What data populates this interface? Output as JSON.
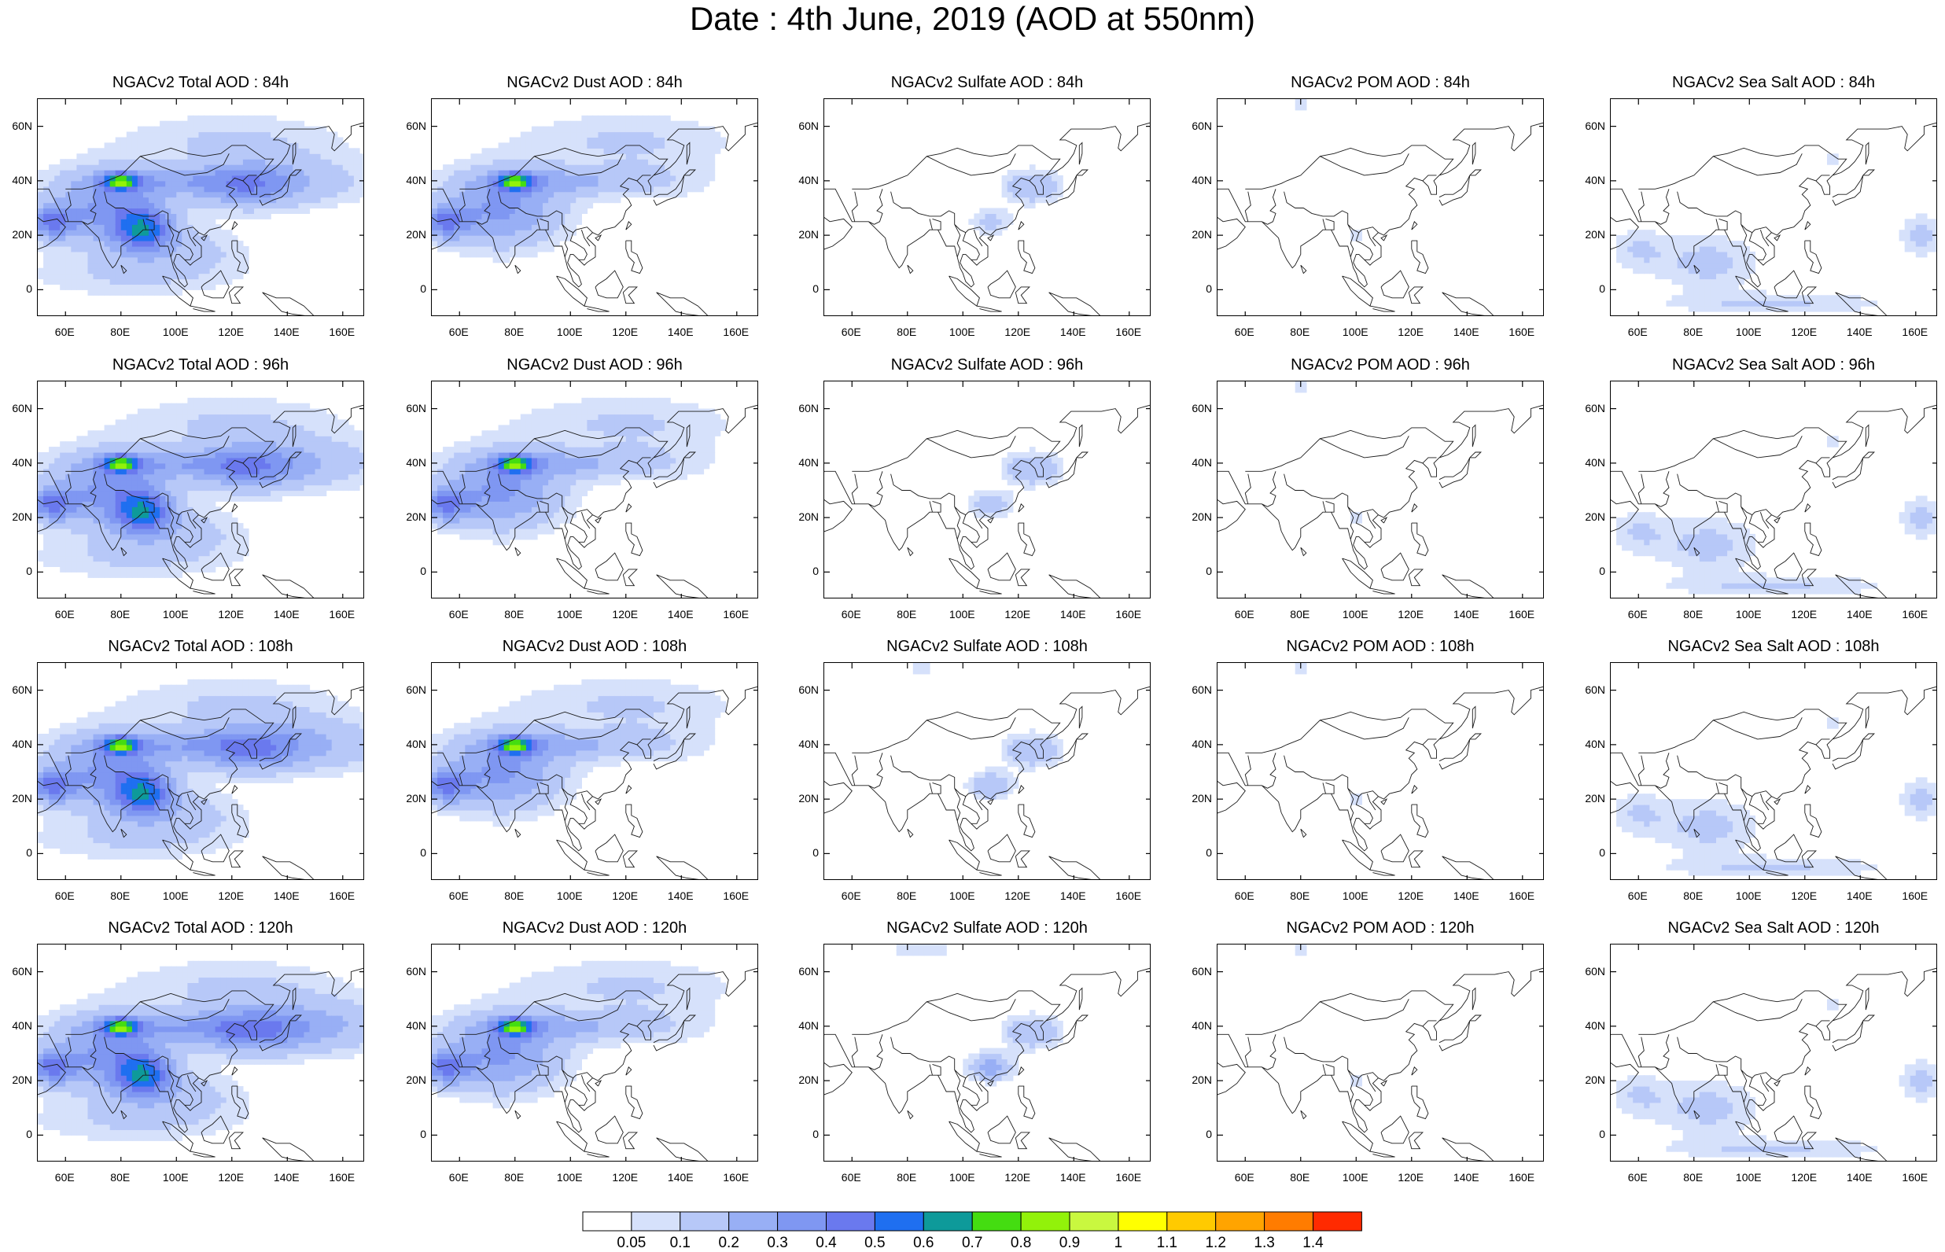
{
  "title": "Date : 4th June, 2019 (AOD at 550nm)",
  "lon_labels": [
    "60E",
    "80E",
    "100E",
    "120E",
    "140E",
    "160E"
  ],
  "lat_labels": [
    "60N",
    "40N",
    "20N",
    "0"
  ],
  "panels": [
    {
      "title": "NGACv2 Total AOD : 84h",
      "species": "total",
      "hour": 84
    },
    {
      "title": "NGACv2 Dust AOD : 84h",
      "species": "dust",
      "hour": 84
    },
    {
      "title": "NGACv2 Sulfate AOD : 84h",
      "species": "sulfate",
      "hour": 84
    },
    {
      "title": "NGACv2 POM AOD : 84h",
      "species": "pom",
      "hour": 84
    },
    {
      "title": "NGACv2 Sea Salt AOD : 84h",
      "species": "seasalt",
      "hour": 84
    },
    {
      "title": "NGACv2 Total AOD : 96h",
      "species": "total",
      "hour": 96
    },
    {
      "title": "NGACv2 Dust AOD : 96h",
      "species": "dust",
      "hour": 96
    },
    {
      "title": "NGACv2 Sulfate AOD : 96h",
      "species": "sulfate",
      "hour": 96
    },
    {
      "title": "NGACv2 POM AOD : 96h",
      "species": "pom",
      "hour": 96
    },
    {
      "title": "NGACv2 Sea Salt AOD : 96h",
      "species": "seasalt",
      "hour": 96
    },
    {
      "title": "NGACv2 Total AOD : 108h",
      "species": "total",
      "hour": 108
    },
    {
      "title": "NGACv2 Dust AOD : 108h",
      "species": "dust",
      "hour": 108
    },
    {
      "title": "NGACv2 Sulfate AOD : 108h",
      "species": "sulfate",
      "hour": 108
    },
    {
      "title": "NGACv2 POM AOD : 108h",
      "species": "pom",
      "hour": 108
    },
    {
      "title": "NGACv2 Sea Salt AOD : 108h",
      "species": "seasalt",
      "hour": 108
    },
    {
      "title": "NGACv2 Total AOD : 120h",
      "species": "total",
      "hour": 120
    },
    {
      "title": "NGACv2 Dust AOD : 120h",
      "species": "dust",
      "hour": 120
    },
    {
      "title": "NGACv2 Sulfate AOD : 120h",
      "species": "sulfate",
      "hour": 120
    },
    {
      "title": "NGACv2 POM AOD : 120h",
      "species": "pom",
      "hour": 120
    },
    {
      "title": "NGACv2 Sea Salt  AOD : 120h",
      "species": "seasalt",
      "hour": 120
    }
  ],
  "colorbar": {
    "labels": [
      "0.05",
      "0.1",
      "0.2",
      "0.3",
      "0.4",
      "0.5",
      "0.6",
      "0.7",
      "0.8",
      "0.9",
      "1",
      "1.1",
      "1.2",
      "1.3",
      "1.4"
    ],
    "colors": [
      "#ffffff",
      "#d6e1fb",
      "#b7c8f8",
      "#98aff5",
      "#7f97f2",
      "#6a79ee",
      "#1f6ff0",
      "#0e9a9a",
      "#44dd11",
      "#92f20a",
      "#c9f83f",
      "#ffff00",
      "#ffca00",
      "#ffa400",
      "#ff7c00",
      "#ff2a00"
    ]
  }
}
